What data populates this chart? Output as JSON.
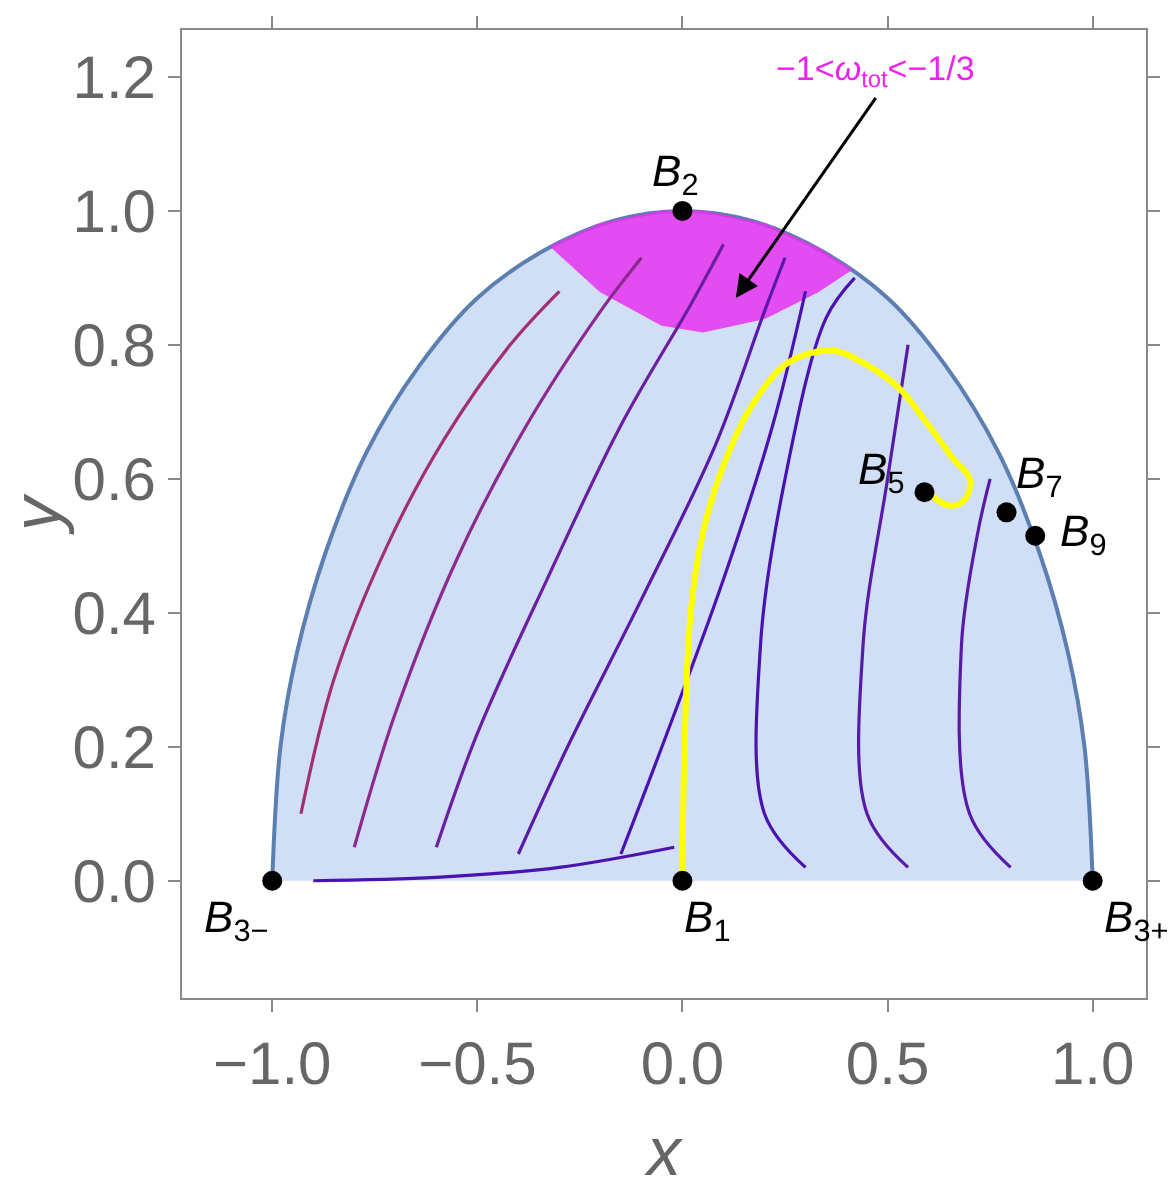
{
  "chart_data": {
    "type": "line",
    "xlabel": "x",
    "ylabel": "y",
    "xlim": [
      -1.22,
      1.13
    ],
    "ylim": [
      -0.175,
      1.27
    ],
    "xticks": [
      {
        "value": -1.0,
        "label": "−1.0"
      },
      {
        "value": -0.5,
        "label": "−0.5"
      },
      {
        "value": 0.0,
        "label": "0.0"
      },
      {
        "value": 0.5,
        "label": "0.5"
      },
      {
        "value": 1.0,
        "label": "1.0"
      }
    ],
    "yticks": [
      {
        "value": 0.0,
        "label": "0.0"
      },
      {
        "value": 0.2,
        "label": "0.2"
      },
      {
        "value": 0.4,
        "label": "0.4"
      },
      {
        "value": 0.6,
        "label": "0.6"
      },
      {
        "value": 0.8,
        "label": "0.8"
      },
      {
        "value": 1.0,
        "label": "1.0"
      },
      {
        "value": 1.2,
        "label": "1.2"
      }
    ],
    "series": [
      {
        "type": "area",
        "color": "#5b7fb0",
        "x": [
          -1.0,
          -0.98,
          -0.94,
          -0.87,
          -0.77,
          -0.64,
          -0.5,
          -0.34,
          -0.17,
          0.0,
          0.17,
          0.34,
          0.5,
          0.64,
          0.77,
          0.87,
          0.94,
          0.98,
          1.0
        ],
        "values": [
          0.0,
          0.2,
          0.34,
          0.49,
          0.64,
          0.77,
          0.87,
          0.94,
          0.985,
          1.0,
          0.985,
          0.94,
          0.87,
          0.77,
          0.64,
          0.49,
          0.34,
          0.2,
          0.0
        ]
      },
      {
        "type": "area",
        "color": "#e633f0",
        "x": [
          -0.32,
          -0.2,
          -0.05,
          0.05,
          0.2,
          0.33,
          0.41,
          0.33,
          0.2,
          0.05,
          -0.05,
          -0.2,
          -0.32
        ],
        "values": [
          0.947,
          0.98,
          0.999,
          0.999,
          0.98,
          0.944,
          0.912,
          0.88,
          0.84,
          0.82,
          0.83,
          0.88,
          0.947
        ]
      },
      {
        "color": "#a03070",
        "x": [
          -0.93,
          -0.85,
          -0.72,
          -0.58,
          -0.42,
          -0.3
        ],
        "values": [
          0.1,
          0.3,
          0.5,
          0.66,
          0.8,
          0.88
        ]
      },
      {
        "color": "#8a2a90",
        "x": [
          -0.8,
          -0.7,
          -0.55,
          -0.38,
          -0.2,
          -0.1
        ],
        "values": [
          0.05,
          0.25,
          0.48,
          0.68,
          0.85,
          0.93
        ]
      },
      {
        "color": "#6a1fa0",
        "x": [
          -0.6,
          -0.5,
          -0.33,
          -0.15,
          0.02,
          0.1
        ],
        "values": [
          0.05,
          0.22,
          0.45,
          0.68,
          0.86,
          0.95
        ]
      },
      {
        "color": "#5a1aa8",
        "x": [
          -0.4,
          -0.28,
          -0.1,
          0.08,
          0.2,
          0.25
        ],
        "values": [
          0.04,
          0.2,
          0.42,
          0.65,
          0.85,
          0.93
        ]
      },
      {
        "color": "#4a12b0",
        "x": [
          -0.15,
          -0.05,
          0.1,
          0.22,
          0.3
        ],
        "values": [
          0.04,
          0.2,
          0.45,
          0.68,
          0.88
        ]
      },
      {
        "color": "#4a12b0",
        "x": [
          -0.9,
          -0.6,
          -0.3,
          -0.02
        ],
        "values": [
          0.0,
          0.005,
          0.02,
          0.05
        ]
      },
      {
        "color": "#4a12b0",
        "x": [
          0.3,
          0.2,
          0.19,
          0.25,
          0.35,
          0.42
        ],
        "values": [
          0.02,
          0.1,
          0.35,
          0.6,
          0.84,
          0.9
        ]
      },
      {
        "color": "#5a1aa8",
        "x": [
          0.55,
          0.45,
          0.44,
          0.5,
          0.55
        ],
        "values": [
          0.02,
          0.1,
          0.35,
          0.6,
          0.8
        ]
      },
      {
        "color": "#5a1aa8",
        "x": [
          0.8,
          0.7,
          0.68,
          0.72,
          0.75
        ],
        "values": [
          0.02,
          0.1,
          0.35,
          0.52,
          0.6
        ]
      },
      {
        "color": "#ffff00",
        "x": [
          0.0,
          0.005,
          0.02,
          0.05,
          0.1,
          0.17,
          0.25,
          0.33,
          0.38,
          0.42,
          0.52,
          0.6,
          0.66,
          0.7,
          0.69,
          0.66,
          0.63,
          0.6
        ],
        "values": [
          0.0,
          0.2,
          0.4,
          0.52,
          0.62,
          0.71,
          0.77,
          0.79,
          0.79,
          0.78,
          0.74,
          0.68,
          0.63,
          0.6,
          0.57,
          0.56,
          0.565,
          0.58
        ]
      },
      {
        "type": "scatter",
        "marker": "circle",
        "color": "#000000",
        "x": [
          0.0,
          -1.0,
          0.0,
          1.0,
          0.59,
          0.79,
          0.86
        ],
        "values": [
          1.0,
          0.0,
          0.0,
          0.0,
          0.58,
          0.55,
          0.515
        ]
      }
    ],
    "annotations": [
      {
        "text": "B$_{2}$",
        "x": 0.0,
        "y": 1.0
      },
      {
        "text": "B$_{3−}$",
        "x": -1.0,
        "y": 0.0
      },
      {
        "text": "B$_{1}$",
        "x": 0.0,
        "y": 0.0
      },
      {
        "text": "B$_{3+}$",
        "x": 1.0,
        "y": 0.0
      },
      {
        "text": "B$_{5}$",
        "x": 0.59,
        "y": 0.58
      },
      {
        "text": "B$_{7}$",
        "x": 0.79,
        "y": 0.55
      },
      {
        "text": "B$_{9}$",
        "x": 0.86,
        "y": 0.515
      },
      "−1<ω$_{tot}$<−1/3"
    ]
  }
}
